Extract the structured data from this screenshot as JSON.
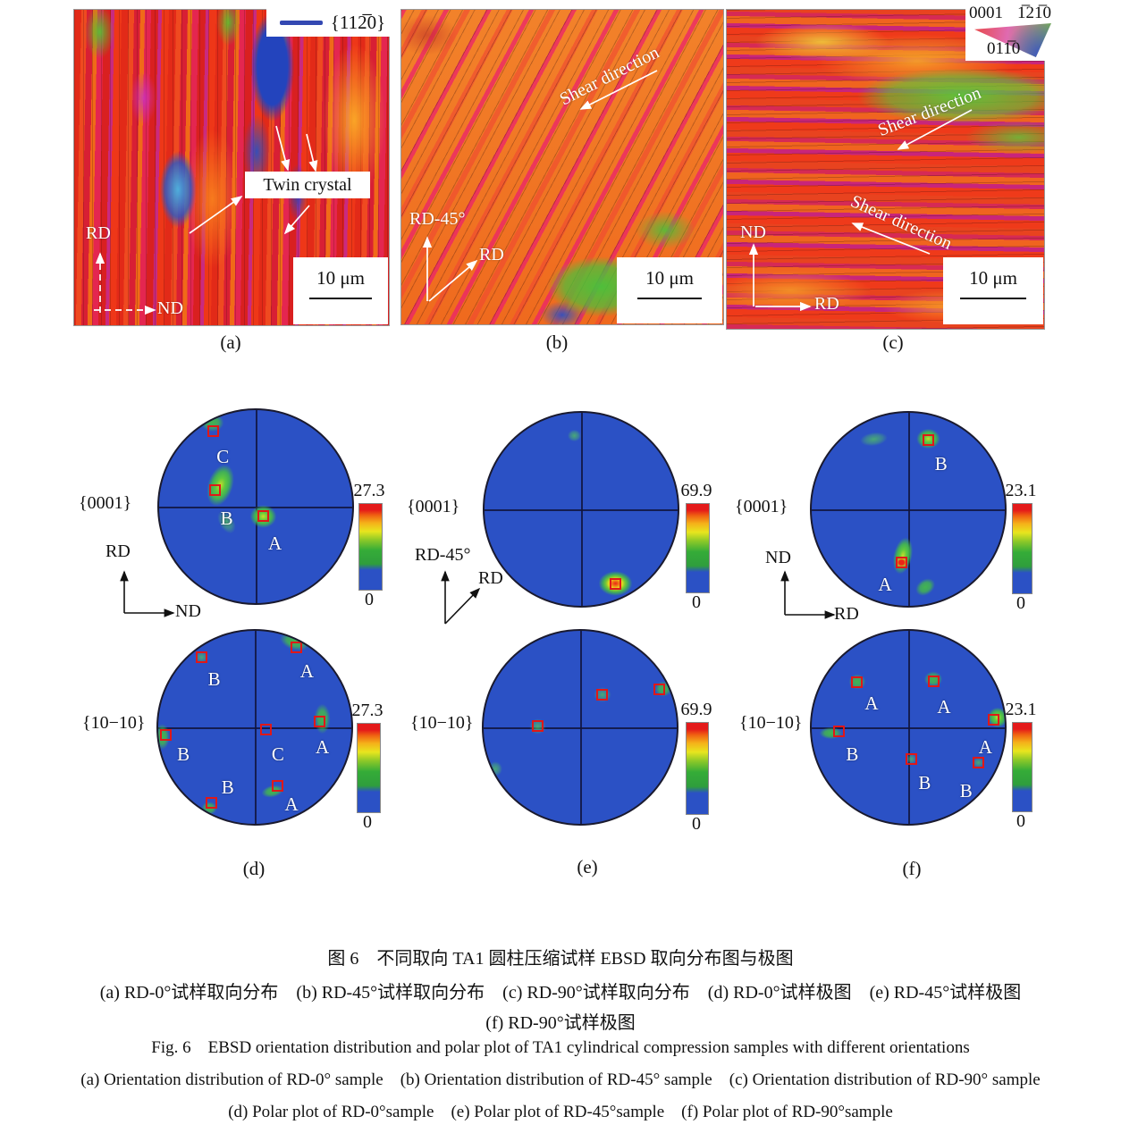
{
  "panels": {
    "a": {
      "label": "(a)",
      "legend_label": "{112̅0}",
      "twin_label": "Twin crystal",
      "axis_v": "RD",
      "axis_h": "ND",
      "scale_label": "10 μm"
    },
    "b": {
      "label": "(b)",
      "shear_label": "Shear direction",
      "axis_v": "RD-45°",
      "axis_d": "RD",
      "scale_label": "10 μm"
    },
    "c": {
      "label": "(c)",
      "ipf_key": {
        "corner_top_left": "0001",
        "corner_top_right": "1̅21̅0",
        "corner_bottom": "011̅0"
      },
      "shear_label_1": "Shear direction",
      "shear_label_2": "Shear direction",
      "axis_v": "ND",
      "axis_h": "RD",
      "scale_label": "10 μm"
    }
  },
  "panel_labels": {
    "a": "(a)",
    "b": "(b)",
    "c": "(c)",
    "d": "(d)",
    "e": "(e)",
    "f": "(f)"
  },
  "pole_axes": {
    "d": {
      "v": "RD",
      "h": "ND"
    },
    "e": {
      "v": "RD-45°",
      "d": "RD"
    },
    "f": {
      "v": "ND",
      "h": "RD"
    }
  },
  "chart_data": [
    {
      "type": "heatmap",
      "subtype": "pole_figure",
      "panel": "d",
      "plane": "{0001}",
      "max": "27.3",
      "min": "0",
      "legend_position": "right",
      "markers": [
        {
          "x": -0.44,
          "y": 0.78,
          "label": "C",
          "lx": -0.34,
          "ly": 0.52
        },
        {
          "x": -0.42,
          "y": 0.17,
          "label": "B",
          "lx": -0.3,
          "ly": -0.12
        },
        {
          "x": 0.08,
          "y": -0.1,
          "label": "A",
          "lx": 0.2,
          "ly": -0.38
        }
      ],
      "spots": [
        {
          "x": -0.45,
          "y": 0.87,
          "rx": 0.15,
          "ry": 0.12,
          "t": "green"
        },
        {
          "x": -0.37,
          "y": 0.22,
          "rx": 0.16,
          "ry": 0.28,
          "t": "green-bright",
          "rot": 18
        },
        {
          "x": -0.3,
          "y": -0.16,
          "rx": 0.09,
          "ry": 0.15,
          "t": "green-faint",
          "rot": -30
        },
        {
          "x": 0.08,
          "y": -0.1,
          "rx": 0.17,
          "ry": 0.15,
          "t": "green-bright"
        }
      ]
    },
    {
      "type": "heatmap",
      "subtype": "pole_figure",
      "panel": "d",
      "plane": "{10−10}",
      "max": "27.3",
      "min": "0",
      "legend_position": "right",
      "markers": [
        {
          "x": -0.55,
          "y": 0.73,
          "label": "B",
          "lx": -0.42,
          "ly": 0.5
        },
        {
          "x": 0.43,
          "y": 0.83,
          "label": "A",
          "lx": 0.54,
          "ly": 0.58
        },
        {
          "x": 0.67,
          "y": 0.06,
          "label": "A",
          "lx": 0.7,
          "ly": -0.2
        },
        {
          "x": -0.92,
          "y": -0.08,
          "label": "B",
          "lx": -0.74,
          "ly": -0.28
        },
        {
          "x": 0.12,
          "y": -0.02,
          "label": "C",
          "lx": 0.24,
          "ly": -0.28
        },
        {
          "x": -0.45,
          "y": -0.78,
          "label": "B",
          "lx": -0.28,
          "ly": -0.62
        },
        {
          "x": 0.24,
          "y": -0.61,
          "label": "A",
          "lx": 0.38,
          "ly": -0.8
        }
      ],
      "spots": [
        {
          "x": 0.41,
          "y": 0.89,
          "rx": 0.2,
          "ry": 0.11,
          "t": "green",
          "rot": 18
        },
        {
          "x": 0.7,
          "y": 0.09,
          "rx": 0.11,
          "ry": 0.2,
          "t": "green"
        },
        {
          "x": -0.96,
          "y": -0.1,
          "rx": 0.1,
          "ry": 0.17,
          "t": "green"
        },
        {
          "x": -0.55,
          "y": 0.73,
          "rx": 0.08,
          "ry": 0.07,
          "t": "green-faint"
        },
        {
          "x": -0.47,
          "y": -0.84,
          "rx": 0.1,
          "ry": 0.09,
          "t": "green"
        },
        {
          "x": 0.19,
          "y": -0.66,
          "rx": 0.15,
          "ry": 0.08,
          "t": "green",
          "rot": -12
        }
      ]
    },
    {
      "type": "heatmap",
      "subtype": "pole_figure",
      "panel": "e",
      "plane": "{0001}",
      "max": "69.9",
      "min": "0",
      "legend_position": "right",
      "markers": [
        {
          "x": 0.36,
          "y": -0.77,
          "label": ""
        }
      ],
      "spots": [
        {
          "x": 0.36,
          "y": -0.77,
          "rx": 0.19,
          "ry": 0.14,
          "t": "hot"
        },
        {
          "x": -0.07,
          "y": 0.76,
          "rx": 0.08,
          "ry": 0.07,
          "t": "green-faint"
        }
      ]
    },
    {
      "type": "heatmap",
      "subtype": "pole_figure",
      "panel": "e",
      "plane": "{10−10}",
      "max": "69.9",
      "min": "0",
      "legend_position": "right",
      "markers": [
        {
          "x": -0.44,
          "y": 0.01,
          "label": ""
        },
        {
          "x": 0.23,
          "y": 0.34,
          "label": ""
        },
        {
          "x": 0.82,
          "y": 0.39,
          "label": ""
        }
      ],
      "spots": [
        {
          "x": -0.44,
          "y": 0.01,
          "rx": 0.1,
          "ry": 0.09,
          "t": "green-faint"
        },
        {
          "x": 0.23,
          "y": 0.34,
          "rx": 0.1,
          "ry": 0.09,
          "t": "green-faint"
        },
        {
          "x": 0.86,
          "y": 0.4,
          "rx": 0.11,
          "ry": 0.1,
          "t": "green"
        },
        {
          "x": -0.88,
          "y": -0.43,
          "rx": 0.08,
          "ry": 0.09,
          "t": "green-faint"
        }
      ]
    },
    {
      "type": "heatmap",
      "subtype": "pole_figure",
      "panel": "f",
      "plane": "{0001}",
      "max": "23.1",
      "min": "0",
      "legend_position": "right",
      "markers": [
        {
          "x": 0.21,
          "y": 0.72,
          "label": "B",
          "lx": 0.34,
          "ly": 0.47
        },
        {
          "x": -0.07,
          "y": -0.55,
          "label": "A",
          "lx": -0.24,
          "ly": -0.78
        }
      ],
      "spots": [
        {
          "x": 0.21,
          "y": 0.73,
          "rx": 0.15,
          "ry": 0.13,
          "t": "green-bright"
        },
        {
          "x": -0.36,
          "y": 0.73,
          "rx": 0.16,
          "ry": 0.08,
          "t": "green-faint",
          "rot": -8
        },
        {
          "x": -0.06,
          "y": -0.48,
          "rx": 0.12,
          "ry": 0.24,
          "t": "green-bright",
          "rot": 12
        },
        {
          "x": -0.07,
          "y": -0.55,
          "rx": 0.07,
          "ry": 0.06,
          "t": "red-core"
        },
        {
          "x": 0.18,
          "y": -0.8,
          "rx": 0.14,
          "ry": 0.1,
          "t": "green",
          "rot": -35
        }
      ]
    },
    {
      "type": "heatmap",
      "subtype": "pole_figure",
      "panel": "f",
      "plane": "{10−10}",
      "max": "23.1",
      "min": "0",
      "legend_position": "right",
      "markers": [
        {
          "x": -0.53,
          "y": 0.47,
          "label": "A",
          "lx": -0.38,
          "ly": 0.25
        },
        {
          "x": 0.26,
          "y": 0.48,
          "label": "A",
          "lx": 0.37,
          "ly": 0.21
        },
        {
          "x": 0.88,
          "y": 0.08,
          "label": "A",
          "lx": 0.8,
          "ly": -0.2
        },
        {
          "x": -0.72,
          "y": -0.04,
          "label": "B",
          "lx": -0.58,
          "ly": -0.28
        },
        {
          "x": 0.03,
          "y": -0.33,
          "label": "B",
          "lx": 0.17,
          "ly": -0.57
        },
        {
          "x": 0.73,
          "y": -0.37,
          "label": "B",
          "lx": 0.6,
          "ly": -0.66
        }
      ],
      "spots": [
        {
          "x": -0.53,
          "y": 0.47,
          "rx": 0.11,
          "ry": 0.1,
          "t": "green"
        },
        {
          "x": 0.26,
          "y": 0.5,
          "rx": 0.12,
          "ry": 0.1,
          "t": "green"
        },
        {
          "x": 0.93,
          "y": 0.1,
          "rx": 0.13,
          "ry": 0.13,
          "t": "green-bright"
        },
        {
          "x": -0.8,
          "y": -0.06,
          "rx": 0.15,
          "ry": 0.08,
          "t": "green"
        },
        {
          "x": 0.03,
          "y": -0.33,
          "rx": 0.06,
          "ry": 0.06,
          "t": "green-faint"
        },
        {
          "x": 0.73,
          "y": -0.37,
          "rx": 0.07,
          "ry": 0.06,
          "t": "green-faint"
        }
      ]
    }
  ],
  "captions": {
    "zh_title": "图 6　不同取向 TA1 圆柱压缩试样 EBSD 取向分布图与极图",
    "zh_line2": "(a) RD-0°试样取向分布 (b) RD-45°试样取向分布 (c) RD-90°试样取向分布 (d) RD-0°试样极图 (e) RD-45°试样极图",
    "zh_line3": "(f) RD-90°试样极图",
    "en_title": "Fig. 6 EBSD orientation distribution and polar plot of TA1 cylindrical compression samples with different orientations",
    "en_line2": "(a) Orientation distribution of RD-0° sample (b) Orientation distribution of RD-45° sample (c) Orientation distribution of RD-90° sample",
    "en_line3": "(d) Polar plot of RD-0°sample (e) Polar plot of RD-45°sample (f) Polar plot of RD-90°sample"
  }
}
